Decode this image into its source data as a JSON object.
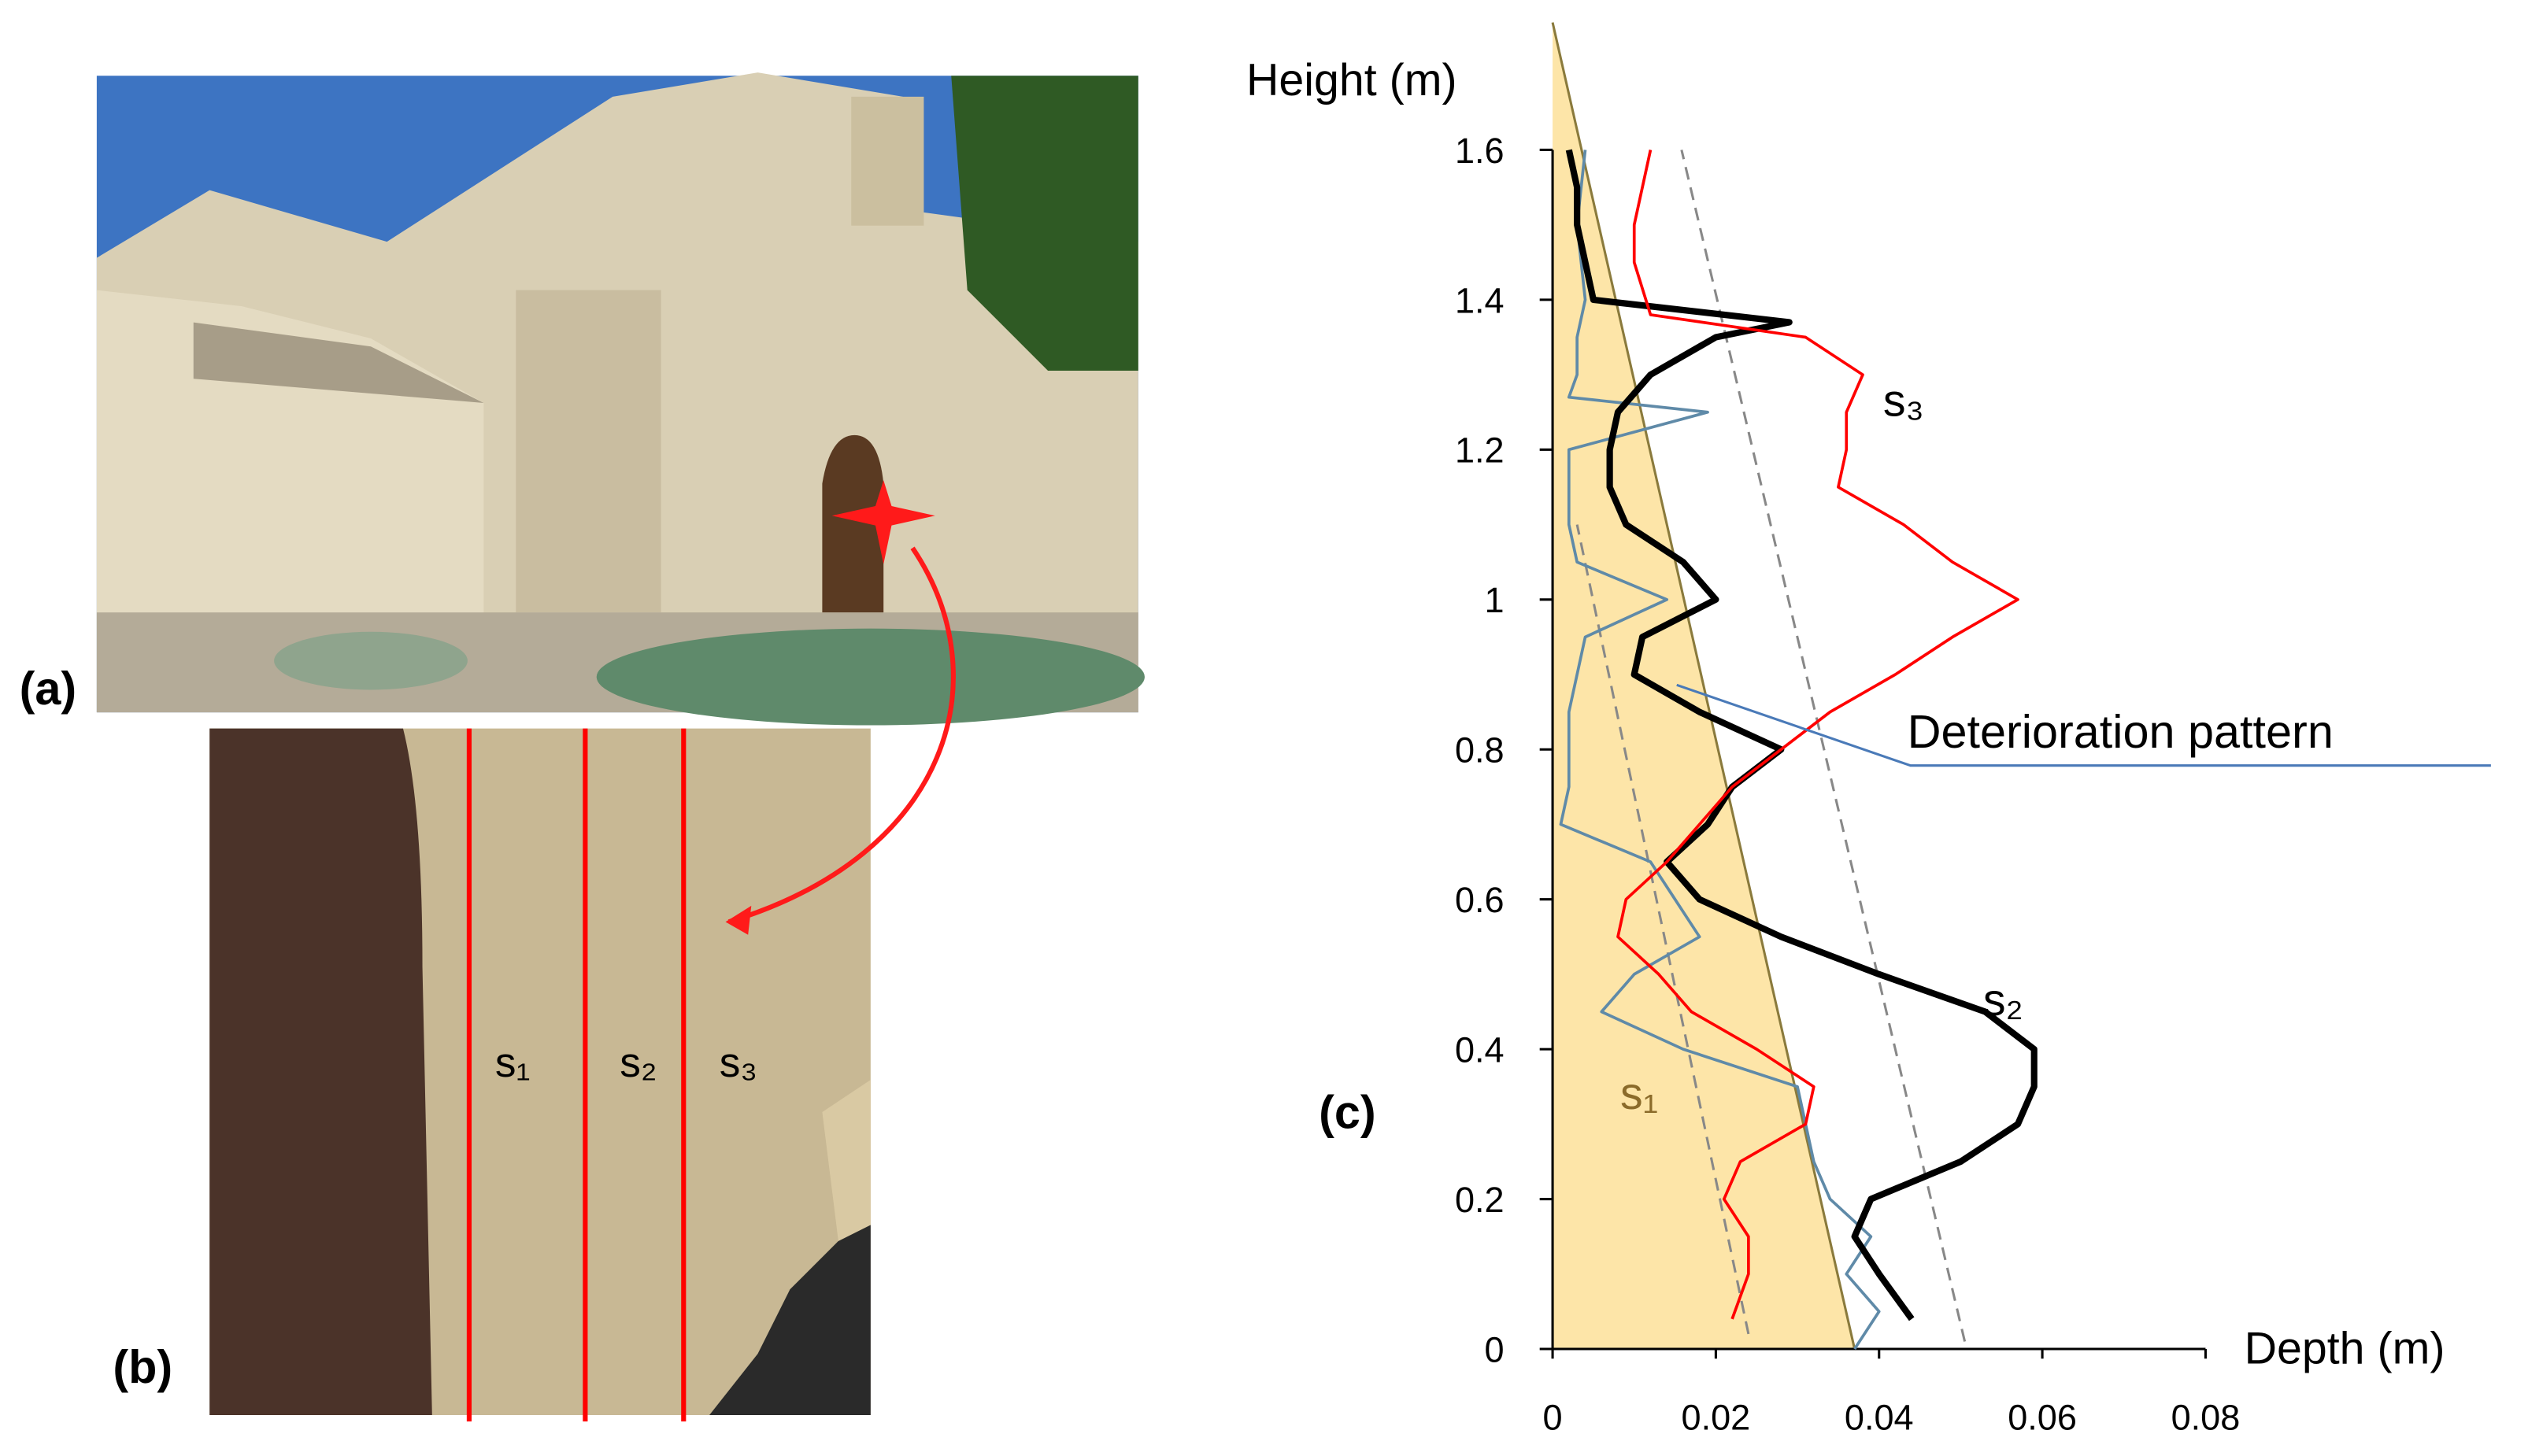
{
  "panel_labels": [
    "(a)",
    "(b)",
    "(c)"
  ],
  "photo_b": {
    "section_labels": [
      "s₁",
      "s₂",
      "s₃"
    ]
  },
  "chart_data": {
    "type": "line",
    "y_label": "Height (m)",
    "x_label": "Depth (m)",
    "xlim": [
      0,
      0.08
    ],
    "xticks": [
      0,
      0.02,
      0.04,
      0.06,
      0.08
    ],
    "ylim": [
      0,
      1.6
    ],
    "yticks": [
      0,
      0.2,
      0.4,
      0.6,
      0.8,
      1,
      1.2,
      1.4,
      1.6
    ],
    "pattern": {
      "label": "Deterioration pattern",
      "color": "#fde5a8",
      "area_x": [
        0,
        0.037,
        0
      ],
      "area_y": [
        0,
        0,
        1.77
      ],
      "dashed_lines": [
        {
          "x": [
            0.024,
            0.003
          ],
          "y": [
            0.02,
            1.1
          ]
        },
        {
          "x": [
            0.0505,
            0.0158
          ],
          "y": [
            0.01,
            1.6
          ]
        }
      ]
    },
    "series": [
      {
        "name": "s₁",
        "color": "#5f8aa8",
        "x": [
          0.037,
          0.04,
          0.036,
          0.039,
          0.034,
          0.032,
          0.031,
          0.03,
          0.016,
          0.006,
          0.01,
          0.018,
          0.015,
          0.012,
          0.001,
          0.002,
          0.002,
          0.002,
          0.003,
          0.004,
          0.014,
          0.003,
          0.002,
          0.002,
          0.002,
          0.019,
          0.002,
          0.003,
          0.003,
          0.004,
          0.003,
          0.004
        ],
        "values": [
          0,
          0.05,
          0.1,
          0.15,
          0.2,
          0.25,
          0.3,
          0.35,
          0.4,
          0.45,
          0.5,
          0.55,
          0.6,
          0.65,
          0.7,
          0.75,
          0.8,
          0.85,
          0.9,
          0.95,
          1.0,
          1.05,
          1.1,
          1.15,
          1.2,
          1.25,
          1.27,
          1.3,
          1.35,
          1.4,
          1.5,
          1.6
        ]
      },
      {
        "name": "s₂",
        "color": "#000000",
        "x": [
          0.044,
          0.04,
          0.037,
          0.039,
          0.05,
          0.057,
          0.059,
          0.059,
          0.053,
          0.04,
          0.028,
          0.018,
          0.014,
          0.019,
          0.022,
          0.028,
          0.018,
          0.01,
          0.011,
          0.02,
          0.016,
          0.009,
          0.007,
          0.007,
          0.008,
          0.012,
          0.02,
          0.029,
          0.005,
          0.004,
          0.003,
          0.003,
          0.002
        ],
        "values": [
          0.04,
          0.1,
          0.15,
          0.2,
          0.25,
          0.3,
          0.35,
          0.4,
          0.45,
          0.5,
          0.55,
          0.6,
          0.65,
          0.7,
          0.75,
          0.8,
          0.85,
          0.9,
          0.95,
          1.0,
          1.05,
          1.1,
          1.15,
          1.2,
          1.25,
          1.3,
          1.35,
          1.37,
          1.4,
          1.45,
          1.5,
          1.55,
          1.6
        ]
      },
      {
        "name": "s₃",
        "color": "#ff0000",
        "x": [
          0.022,
          0.024,
          0.024,
          0.021,
          0.023,
          0.031,
          0.032,
          0.025,
          0.017,
          0.013,
          0.008,
          0.009,
          0.014,
          0.018,
          0.022,
          0.028,
          0.034,
          0.042,
          0.049,
          0.057,
          0.049,
          0.043,
          0.035,
          0.036,
          0.036,
          0.038,
          0.031,
          0.012,
          0.01,
          0.01,
          0.011,
          0.012
        ],
        "values": [
          0.04,
          0.1,
          0.15,
          0.2,
          0.25,
          0.3,
          0.35,
          0.4,
          0.45,
          0.5,
          0.55,
          0.6,
          0.65,
          0.7,
          0.75,
          0.8,
          0.85,
          0.9,
          0.95,
          1.0,
          1.05,
          1.1,
          1.15,
          1.2,
          1.25,
          1.3,
          1.35,
          1.38,
          1.45,
          1.5,
          1.55,
          1.6
        ]
      }
    ]
  }
}
